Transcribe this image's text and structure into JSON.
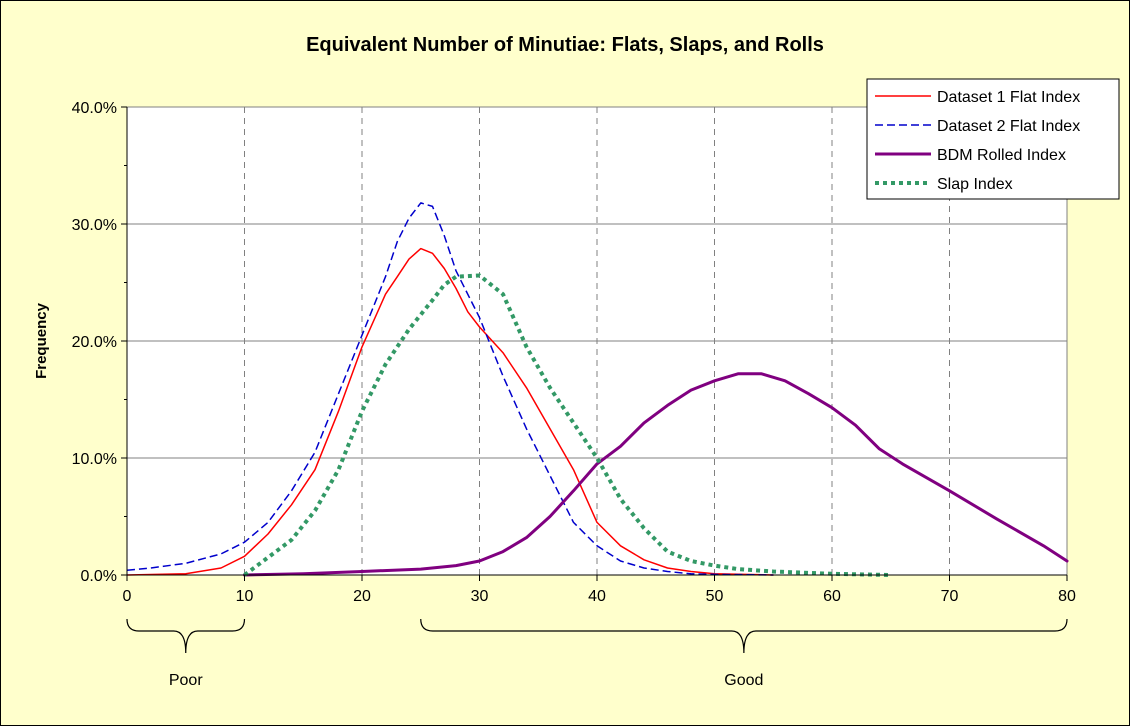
{
  "chart_data": {
    "type": "line",
    "title": "Equivalent Number of Minutiae: Flats, Slaps, and Rolls",
    "xlabel": "",
    "ylabel": "Frequency",
    "xlim": [
      0,
      80
    ],
    "ylim": [
      0,
      0.4
    ],
    "x_ticks": [
      0,
      10,
      20,
      30,
      40,
      50,
      60,
      70,
      80
    ],
    "y_ticks": [
      "0.0%",
      "10.0%",
      "20.0%",
      "30.0%",
      "40.0%"
    ],
    "grid": {
      "horizontal": true,
      "vertical_dashed": true
    },
    "legend_position": "top-right",
    "series": [
      {
        "name": "Dataset 1 Flat Index",
        "color": "#ff0000",
        "dash": "solid",
        "points": [
          [
            0,
            0
          ],
          [
            5,
            0.001
          ],
          [
            8,
            0.006
          ],
          [
            10,
            0.016
          ],
          [
            12,
            0.035
          ],
          [
            14,
            0.06
          ],
          [
            16,
            0.09
          ],
          [
            18,
            0.14
          ],
          [
            20,
            0.195
          ],
          [
            22,
            0.24
          ],
          [
            23,
            0.255
          ],
          [
            24,
            0.27
          ],
          [
            25,
            0.279
          ],
          [
            26,
            0.275
          ],
          [
            27,
            0.262
          ],
          [
            28,
            0.245
          ],
          [
            29,
            0.225
          ],
          [
            30,
            0.212
          ],
          [
            32,
            0.19
          ],
          [
            34,
            0.16
          ],
          [
            36,
            0.125
          ],
          [
            38,
            0.09
          ],
          [
            40,
            0.045
          ],
          [
            42,
            0.025
          ],
          [
            44,
            0.013
          ],
          [
            46,
            0.006
          ],
          [
            48,
            0.003
          ],
          [
            50,
            0.001
          ],
          [
            55,
            0
          ]
        ]
      },
      {
        "name": "Dataset 2 Flat Index",
        "color": "#0000cc",
        "dash": "dashed",
        "points": [
          [
            0,
            0.004
          ],
          [
            2,
            0.006
          ],
          [
            5,
            0.01
          ],
          [
            8,
            0.018
          ],
          [
            10,
            0.028
          ],
          [
            12,
            0.045
          ],
          [
            14,
            0.072
          ],
          [
            16,
            0.105
          ],
          [
            18,
            0.155
          ],
          [
            20,
            0.205
          ],
          [
            22,
            0.255
          ],
          [
            23,
            0.285
          ],
          [
            24,
            0.305
          ],
          [
            25,
            0.318
          ],
          [
            26,
            0.315
          ],
          [
            27,
            0.29
          ],
          [
            28,
            0.26
          ],
          [
            30,
            0.22
          ],
          [
            32,
            0.17
          ],
          [
            34,
            0.125
          ],
          [
            36,
            0.085
          ],
          [
            38,
            0.045
          ],
          [
            40,
            0.025
          ],
          [
            42,
            0.012
          ],
          [
            44,
            0.006
          ],
          [
            46,
            0.003
          ],
          [
            48,
            0.001
          ],
          [
            50,
            0.0005
          ],
          [
            55,
            0
          ]
        ]
      },
      {
        "name": "BDM Rolled Index",
        "color": "#800080",
        "dash": "solid",
        "points": [
          [
            10,
            0
          ],
          [
            15,
            0.001
          ],
          [
            20,
            0.003
          ],
          [
            25,
            0.005
          ],
          [
            28,
            0.008
          ],
          [
            30,
            0.012
          ],
          [
            32,
            0.02
          ],
          [
            34,
            0.032
          ],
          [
            36,
            0.05
          ],
          [
            38,
            0.072
          ],
          [
            40,
            0.095
          ],
          [
            42,
            0.11
          ],
          [
            44,
            0.13
          ],
          [
            46,
            0.145
          ],
          [
            48,
            0.158
          ],
          [
            50,
            0.166
          ],
          [
            52,
            0.172
          ],
          [
            54,
            0.172
          ],
          [
            56,
            0.166
          ],
          [
            58,
            0.155
          ],
          [
            60,
            0.143
          ],
          [
            62,
            0.128
          ],
          [
            64,
            0.108
          ],
          [
            66,
            0.095
          ],
          [
            70,
            0.072
          ],
          [
            74,
            0.048
          ],
          [
            78,
            0.025
          ],
          [
            80,
            0.012
          ]
        ]
      },
      {
        "name": "Slap Index",
        "color": "#339966",
        "dash": "dotted",
        "points": [
          [
            10,
            0
          ],
          [
            12,
            0.015
          ],
          [
            14,
            0.03
          ],
          [
            16,
            0.055
          ],
          [
            18,
            0.09
          ],
          [
            20,
            0.14
          ],
          [
            22,
            0.18
          ],
          [
            24,
            0.21
          ],
          [
            26,
            0.235
          ],
          [
            27,
            0.248
          ],
          [
            28,
            0.255
          ],
          [
            30,
            0.256
          ],
          [
            32,
            0.24
          ],
          [
            34,
            0.195
          ],
          [
            36,
            0.16
          ],
          [
            38,
            0.13
          ],
          [
            40,
            0.1
          ],
          [
            42,
            0.065
          ],
          [
            44,
            0.04
          ],
          [
            46,
            0.02
          ],
          [
            48,
            0.012
          ],
          [
            50,
            0.008
          ],
          [
            52,
            0.005
          ],
          [
            55,
            0.003
          ],
          [
            60,
            0.001
          ],
          [
            65,
            0
          ]
        ]
      }
    ],
    "annotations": [
      {
        "label": "Poor",
        "range": [
          0,
          10
        ]
      },
      {
        "label": "Good",
        "range": [
          25,
          80
        ]
      }
    ]
  }
}
